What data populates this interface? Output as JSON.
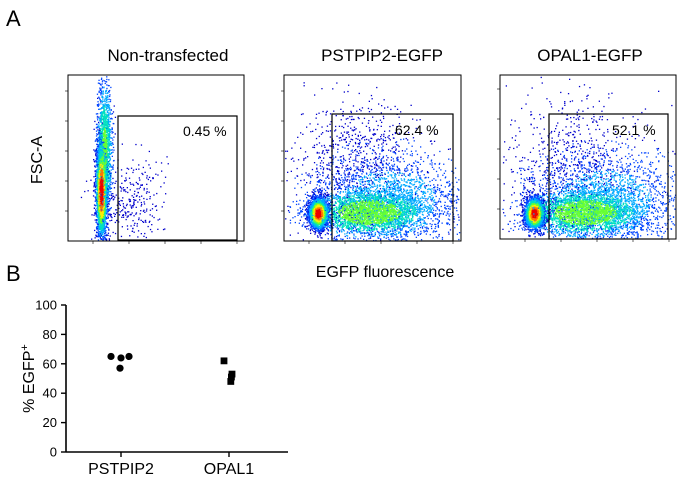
{
  "panel_a": {
    "letter": "A",
    "y_axis_label": "FSC-A",
    "x_axis_label": "EGFP fluorescence",
    "plots": [
      {
        "title": "Non-transfected",
        "gate_percent": "0.45 %",
        "population": "non-transfected"
      },
      {
        "title": "PSTPIP2-EGFP",
        "gate_percent": "62.4 %",
        "population": "transfected"
      },
      {
        "title": "OPAL1-EGFP",
        "gate_percent": "52.1 %",
        "population": "transfected"
      }
    ]
  },
  "chart_data": {
    "type": "scatter",
    "panel_letter": "B",
    "ylabel": "% EGFP",
    "ylabel_superscript": "+",
    "xlabel": "",
    "categories": [
      "PSTPIP2",
      "OPAL1"
    ],
    "ylim": [
      0,
      100
    ],
    "yticks": [
      0,
      20,
      40,
      60,
      80,
      100
    ],
    "series": [
      {
        "category": "PSTPIP2",
        "marker": "circle",
        "values": [
          65,
          64,
          65,
          57
        ]
      },
      {
        "category": "OPAL1",
        "marker": "square",
        "values": [
          62,
          53,
          48,
          51
        ]
      }
    ],
    "marker_color": "#000000"
  },
  "colormap": [
    "#0000cc",
    "#0044ff",
    "#00aaff",
    "#00e0c0",
    "#66ff33",
    "#ffee00",
    "#ff7700",
    "#ee0000"
  ]
}
